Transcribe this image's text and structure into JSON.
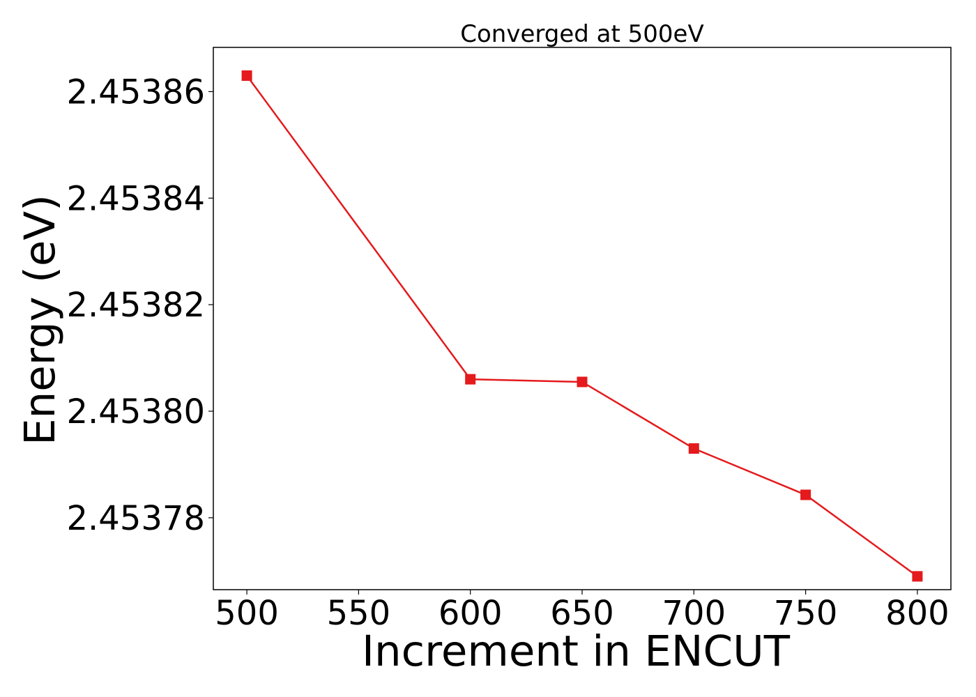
{
  "chart_data": {
    "type": "line",
    "title": "Converged at 500eV",
    "xlabel": "Increment in ENCUT",
    "ylabel": "Energy (eV)",
    "x": [
      500,
      600,
      650,
      700,
      750,
      800
    ],
    "series": [
      {
        "values": [
          2.453863,
          2.453806,
          2.4538055,
          2.453793,
          2.4537843,
          2.453769
        ],
        "color": "#e41a1c",
        "marker": "square"
      }
    ],
    "xticks": [
      "500",
      "550",
      "600",
      "650",
      "700",
      "750",
      "800"
    ],
    "yticks": [
      "2.45378",
      "2.45380",
      "2.45382",
      "2.45384",
      "2.45386"
    ],
    "xlim": [
      485,
      815
    ],
    "ylim": [
      2.4537665,
      2.4538683
    ],
    "grid": false,
    "legend": false
  }
}
